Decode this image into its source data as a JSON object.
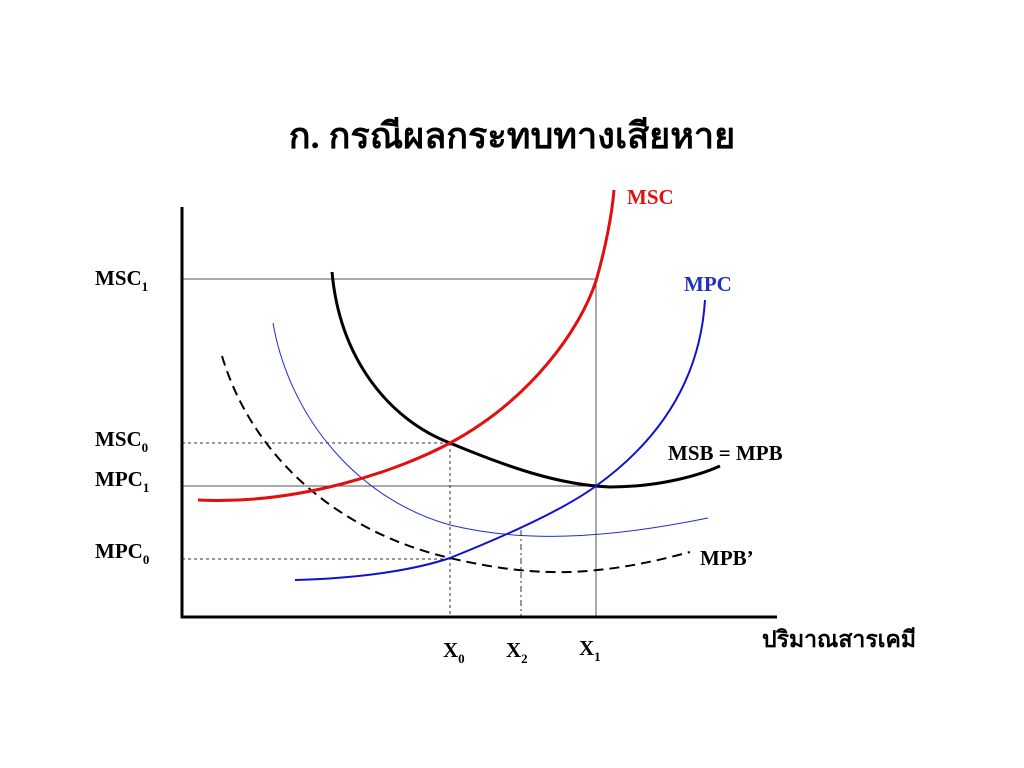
{
  "title": "ก. กรณีผลกระทบทางเสียหาย",
  "y_labels": [
    {
      "text": "MSC",
      "sub": "1"
    },
    {
      "text": "MSC",
      "sub": "0"
    },
    {
      "text": "MPC",
      "sub": "1"
    },
    {
      "text": "MPC",
      "sub": "0"
    }
  ],
  "x_labels": [
    {
      "text": "X",
      "sub": "0"
    },
    {
      "text": "X",
      "sub": "2"
    },
    {
      "text": "X",
      "sub": "1"
    }
  ],
  "x_axis_label": "ปริมาณสารเคมี",
  "curves": {
    "msc": "MSC",
    "mpc": "MPC",
    "msb": "MSB = MPB",
    "mpb_prime": "MPB’"
  }
}
